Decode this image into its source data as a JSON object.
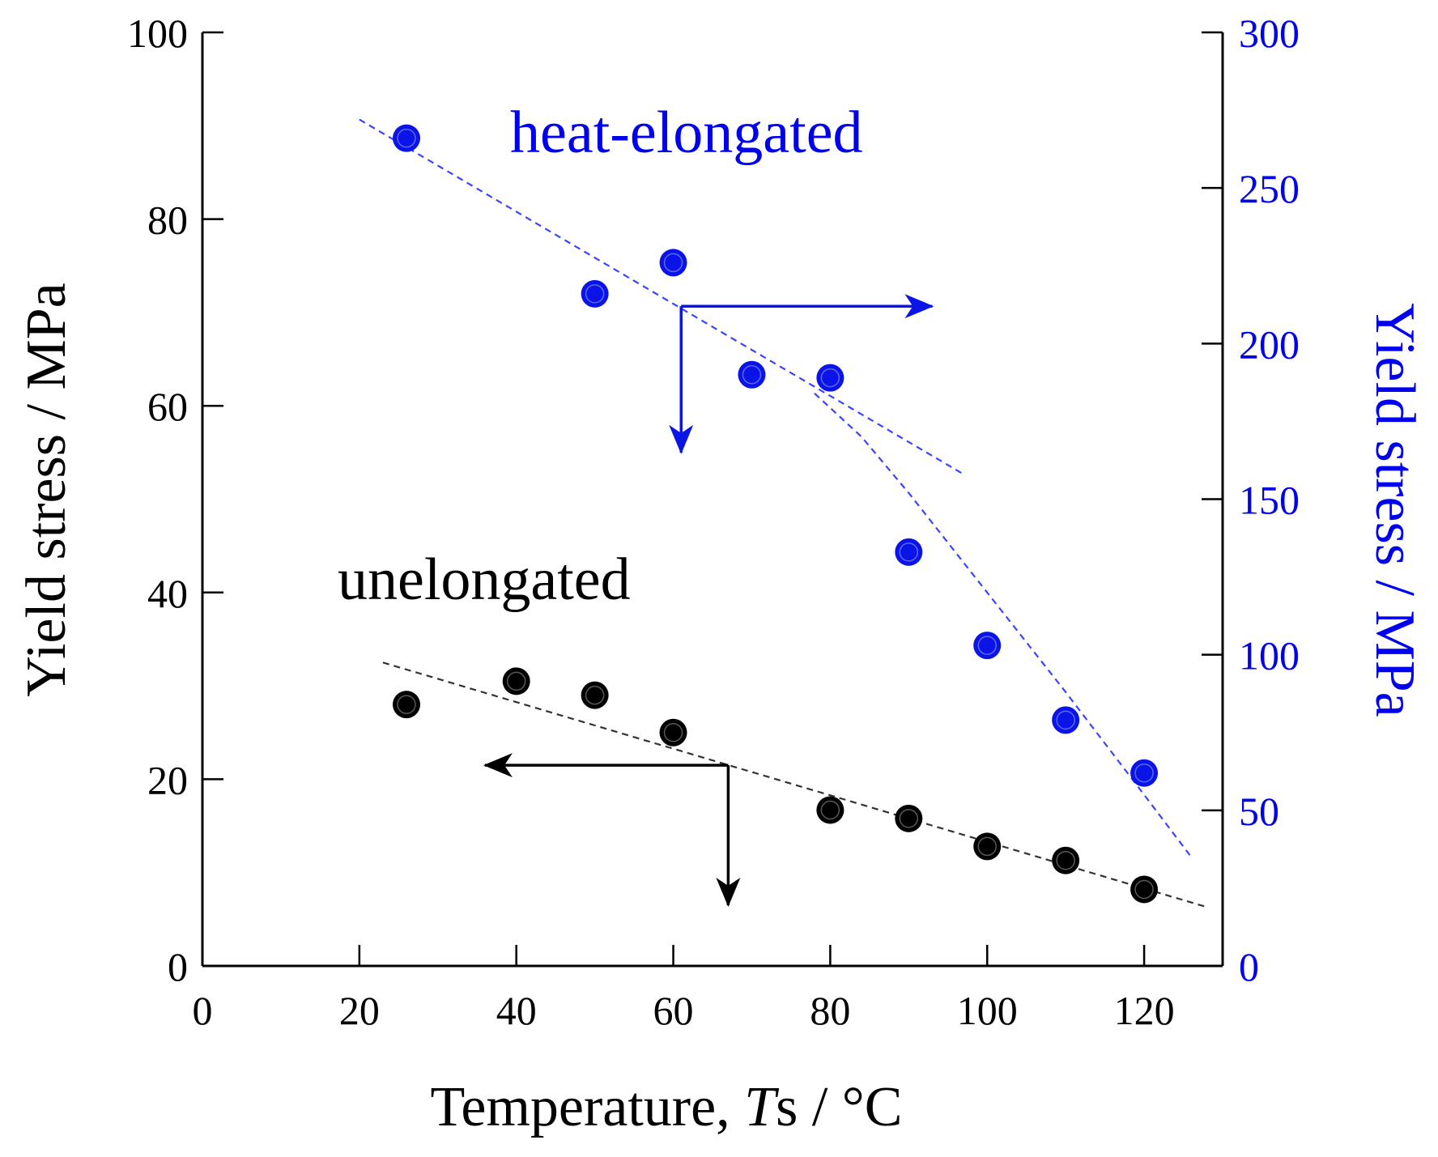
{
  "colors": {
    "black": "#000000",
    "blue": "#0a14e6",
    "blue_text": "#0000f0",
    "fit_black": "#333333",
    "fit_blue": "#3a44ff"
  },
  "chart_data": {
    "type": "scatter",
    "title": "",
    "xlabel": {
      "main": "Temperature, ",
      "italic": "T",
      "rest": "s / °C"
    },
    "ylabel_left": "Yield stress / MPa",
    "ylabel_right": "Yield stress / MPa",
    "xlim": [
      0,
      130
    ],
    "ylim_left": [
      0,
      100
    ],
    "ylim_right": [
      0,
      300
    ],
    "xticks": [
      0,
      20,
      40,
      60,
      80,
      100,
      120
    ],
    "yticks_left": [
      0,
      20,
      40,
      60,
      80,
      100
    ],
    "yticks_right": [
      0,
      50,
      100,
      150,
      200,
      250,
      300
    ],
    "series": [
      {
        "name": "heat-elongated",
        "axis": "right",
        "color": "blue",
        "x": [
          26,
          50,
          60,
          70,
          80,
          90,
          100,
          110,
          120
        ],
        "y": [
          266,
          216,
          226,
          190,
          189,
          133,
          103,
          79,
          62
        ],
        "fit_lines": [
          {
            "x": [
              20,
              97
            ],
            "y": [
              272,
              158
            ]
          },
          {
            "x": [
              78,
              84,
              90,
              100,
              110,
              120,
              126
            ],
            "y": [
              184,
              170,
              152,
              120,
              88,
              55,
              35
            ]
          }
        ],
        "arrows": {
          "origin": [
            61,
            212
          ],
          "right_to_x": 93,
          "down_to_y": 165
        }
      },
      {
        "name": "unelongated",
        "axis": "left",
        "color": "black",
        "x": [
          26,
          40,
          50,
          60,
          80,
          90,
          100,
          110,
          120
        ],
        "y": [
          28,
          30.5,
          29,
          25,
          16.7,
          15.8,
          12.8,
          11.3,
          8.2
        ],
        "fit_lines": [
          {
            "x": [
              23,
              128
            ],
            "y": [
              32.5,
              6.3
            ]
          }
        ],
        "arrows": {
          "origin": [
            67,
            21.5
          ],
          "left_to_x": 36,
          "down_to_y": 6.5
        }
      }
    ],
    "annotations": [
      {
        "text": "heat-elongated",
        "color": "blue"
      },
      {
        "text": "unelongated",
        "color": "black"
      }
    ]
  }
}
